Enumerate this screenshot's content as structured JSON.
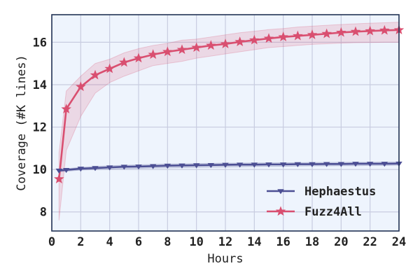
{
  "chart_data": {
    "type": "line",
    "title": "",
    "xlabel": "Hours",
    "ylabel": "Coverage (#K lines)",
    "xlim": [
      0,
      24
    ],
    "ylim": [
      7.1,
      17.3
    ],
    "xticks": [
      0,
      2,
      4,
      6,
      8,
      10,
      12,
      14,
      16,
      18,
      20,
      22,
      24
    ],
    "yticks": [
      8,
      10,
      12,
      14,
      16
    ],
    "grid": true,
    "legend_position": "lower-right",
    "background_color": "#eef4fd",
    "series": [
      {
        "name": "Hephaestus",
        "color": "#4c4f94",
        "marker": "triangle-down",
        "x": [
          0.5,
          1,
          2,
          3,
          4,
          5,
          6,
          7,
          8,
          9,
          10,
          11,
          12,
          13,
          14,
          15,
          16,
          17,
          18,
          19,
          20,
          21,
          22,
          23,
          24
        ],
        "y": [
          9.95,
          9.98,
          10.04,
          10.07,
          10.1,
          10.13,
          10.14,
          10.16,
          10.18,
          10.19,
          10.2,
          10.21,
          10.22,
          10.23,
          10.23,
          10.24,
          10.24,
          10.25,
          10.25,
          10.26,
          10.26,
          10.27,
          10.27,
          10.27,
          10.28
        ],
        "lower": [
          9.9,
          9.92,
          9.97,
          10.0,
          10.02,
          10.04,
          10.05,
          10.07,
          10.08,
          10.09,
          10.1,
          10.11,
          10.12,
          10.13,
          10.14,
          10.15,
          10.15,
          10.16,
          10.17,
          10.17,
          10.18,
          10.18,
          10.19,
          10.19,
          10.2
        ],
        "upper": [
          10.0,
          10.04,
          10.1,
          10.14,
          10.18,
          10.2,
          10.22,
          10.24,
          10.26,
          10.27,
          10.28,
          10.29,
          10.3,
          10.3,
          10.31,
          10.31,
          10.32,
          10.32,
          10.33,
          10.33,
          10.34,
          10.34,
          10.34,
          10.35,
          10.35
        ]
      },
      {
        "name": "Fuzz4All",
        "color": "#d94f70",
        "marker": "star",
        "x": [
          0.5,
          1,
          2,
          3,
          4,
          5,
          6,
          7,
          8,
          9,
          10,
          11,
          12,
          13,
          14,
          15,
          16,
          17,
          18,
          19,
          20,
          21,
          22,
          23,
          24
        ],
        "y": [
          9.55,
          12.85,
          13.9,
          14.45,
          14.75,
          15.05,
          15.25,
          15.42,
          15.55,
          15.65,
          15.75,
          15.85,
          15.92,
          16.02,
          16.1,
          16.18,
          16.25,
          16.3,
          16.35,
          16.4,
          16.46,
          16.5,
          16.53,
          16.56,
          16.58
        ],
        "lower": [
          7.6,
          10.9,
          12.5,
          13.6,
          14.1,
          14.4,
          14.65,
          14.9,
          15.0,
          15.1,
          15.25,
          15.35,
          15.45,
          15.55,
          15.65,
          15.75,
          15.8,
          15.85,
          15.9,
          15.93,
          15.96,
          15.98,
          15.99,
          16.0,
          16.0
        ],
        "upper": [
          10.8,
          13.7,
          14.4,
          15.0,
          15.2,
          15.5,
          15.7,
          15.85,
          15.95,
          16.1,
          16.15,
          16.25,
          16.35,
          16.45,
          16.52,
          16.6,
          16.65,
          16.72,
          16.76,
          16.8,
          16.84,
          16.87,
          16.9,
          16.92,
          16.95
        ]
      }
    ]
  }
}
